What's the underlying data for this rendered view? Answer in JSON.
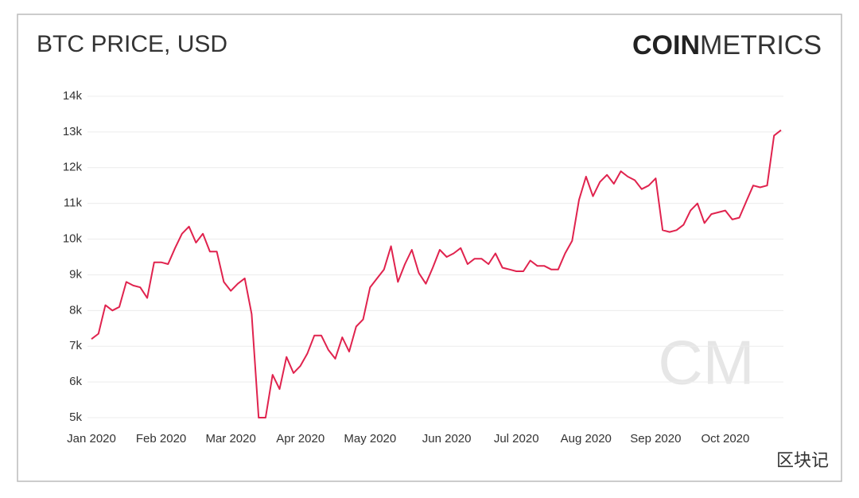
{
  "brand": {
    "bold": "COIN",
    "light": "METRICS",
    "watermark": "CM"
  },
  "footer": "区块记",
  "chart_data": {
    "type": "line",
    "title": "BTC PRICE, USD",
    "categories": [
      "Jan 2020",
      null,
      null,
      null,
      null,
      null,
      null,
      null,
      null,
      null,
      "Feb 2020",
      null,
      null,
      null,
      null,
      null,
      null,
      null,
      null,
      null,
      "Mar 2020",
      null,
      null,
      null,
      null,
      null,
      null,
      null,
      null,
      null,
      "Apr 2020",
      null,
      null,
      null,
      null,
      null,
      null,
      null,
      null,
      null,
      "May 2020",
      null,
      null,
      null,
      null,
      null,
      null,
      null,
      null,
      null,
      null,
      "Jun 2020",
      null,
      null,
      null,
      null,
      null,
      null,
      null,
      null,
      null,
      "Jul 2020",
      null,
      null,
      null,
      null,
      null,
      null,
      null,
      null,
      null,
      "Aug 2020",
      null,
      null,
      null,
      null,
      null,
      null,
      null,
      null,
      null,
      "Sep 2020",
      null,
      null,
      null,
      null,
      null,
      null,
      null,
      null,
      null,
      "Oct 2020",
      null,
      null,
      null,
      null,
      null,
      null,
      null,
      null
    ],
    "series": [
      {
        "name": "BTC",
        "color": "#e0234e",
        "values": [
          7200,
          7350,
          8150,
          8000,
          8100,
          8800,
          8700,
          8650,
          8350,
          9350,
          9350,
          9300,
          9750,
          10150,
          10350,
          9900,
          10150,
          9650,
          9650,
          8800,
          8550,
          8750,
          8900,
          7900,
          5000,
          5000,
          6200,
          5800,
          6700,
          6250,
          6450,
          6800,
          7300,
          7300,
          6900,
          6650,
          7250,
          6850,
          7550,
          7750,
          8650,
          8900,
          9150,
          9800,
          8800,
          9300,
          9700,
          9050,
          8750,
          9200,
          9700,
          9500,
          9600,
          9750,
          9300,
          9450,
          9450,
          9300,
          9600,
          9200,
          9150,
          9100,
          9100,
          9400,
          9250,
          9250,
          9150,
          9150,
          9600,
          9950,
          11100,
          11750,
          11200,
          11600,
          11800,
          11550,
          11900,
          11750,
          11650,
          11400,
          11500,
          11700,
          10250,
          10200,
          10250,
          10400,
          10800,
          11000,
          10450,
          10700,
          10750,
          10800,
          10550,
          10600,
          11050,
          11500,
          11450,
          11500,
          12900,
          13050
        ]
      }
    ],
    "ylim": [
      5000,
      14000
    ],
    "yticks": [
      {
        "value": 5000,
        "label": "5k"
      },
      {
        "value": 6000,
        "label": "6k"
      },
      {
        "value": 7000,
        "label": "7k"
      },
      {
        "value": 8000,
        "label": "8k"
      },
      {
        "value": 9000,
        "label": "9k"
      },
      {
        "value": 10000,
        "label": "10k"
      },
      {
        "value": 11000,
        "label": "11k"
      },
      {
        "value": 12000,
        "label": "12k"
      },
      {
        "value": 13000,
        "label": "13k"
      },
      {
        "value": 14000,
        "label": "14k"
      }
    ],
    "grid": true
  }
}
